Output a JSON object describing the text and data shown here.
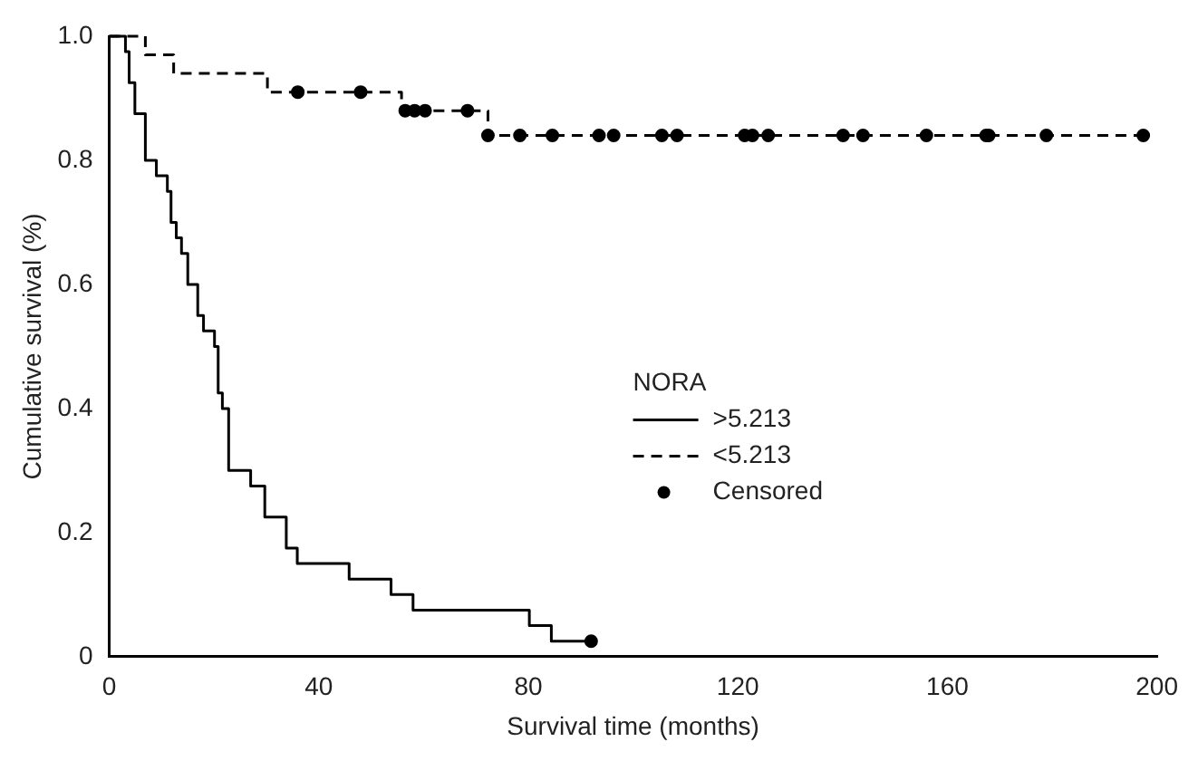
{
  "chart_data": {
    "type": "step",
    "xlabel": "Survival time (months)",
    "ylabel": "Cumulative survival (%)",
    "legend_title": "NORA",
    "xlim": [
      0,
      200
    ],
    "xticks": [
      0,
      40,
      80,
      120,
      160,
      200
    ],
    "ylim": [
      0,
      1
    ],
    "yticks": [
      {
        "value": 0,
        "label": "0"
      },
      0.2,
      0.4,
      0.6,
      0.8,
      {
        "value": 1,
        "label": "1.0"
      }
    ],
    "grid": false,
    "legend": "right",
    "series": [
      {
        "name": ">5.213",
        "color": "#000000",
        "line_style": "solid",
        "marker": "none",
        "x": [
          0,
          3.1,
          3.8,
          4.9,
          6.9,
          9.0,
          11.1,
          11.8,
          12.8,
          13.8,
          15.0,
          16.9,
          18.0,
          20.1,
          20.8,
          21.6,
          22.8,
          27.0,
          29.7,
          33.8,
          35.9,
          45.8,
          53.8,
          58.0,
          80.2,
          84.4,
          92
        ],
        "values": [
          1,
          0.975,
          0.925,
          0.875,
          0.8,
          0.775,
          0.75,
          0.7,
          0.675,
          0.65,
          0.6,
          0.55,
          0.525,
          0.5,
          0.425,
          0.4,
          0.3,
          0.275,
          0.225,
          0.175,
          0.15,
          0.125,
          0.1,
          0.075,
          0.05,
          0.025,
          0.025
        ]
      },
      {
        "name": "<5.213",
        "color": "#000000",
        "line_style": "dashed",
        "marker": "none",
        "x": [
          0,
          6.9,
          12.3,
          30.2,
          55.8,
          72.3,
          197.4
        ],
        "values": [
          1,
          0.97,
          0.94,
          0.91,
          0.88,
          0.84,
          0.84
        ]
      },
      {
        "name": "Censored",
        "type": "scatter",
        "color": "#000000",
        "marker": "circle",
        "x": [
          36,
          48,
          56.5,
          58.3,
          60.3,
          68.4,
          72.3,
          78.4,
          84.6,
          93.5,
          96.3,
          105.5,
          108.4,
          121.3,
          122.8,
          125.8,
          140.1,
          143.9,
          156,
          167.4,
          167.9,
          178.9,
          197.4,
          92
        ],
        "values": [
          0.91,
          0.91,
          0.88,
          0.88,
          0.88,
          0.88,
          0.84,
          0.84,
          0.84,
          0.84,
          0.84,
          0.84,
          0.84,
          0.84,
          0.84,
          0.84,
          0.84,
          0.84,
          0.84,
          0.84,
          0.84,
          0.84,
          0.84,
          0.025
        ]
      }
    ]
  }
}
